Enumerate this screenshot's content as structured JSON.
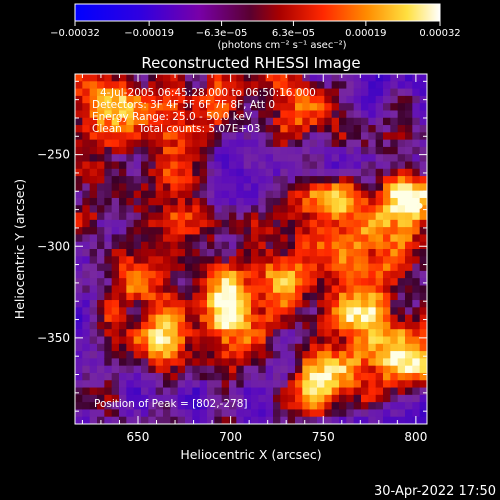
{
  "chart_data": {
    "type": "heatmap",
    "title": "Reconstructed RHESSI Image",
    "xlabel": "Heliocentric X (arcsec)",
    "ylabel": "Heliocentric Y (arcsec)",
    "xlim": [
      616,
      806
    ],
    "ylim": [
      -397,
      -206
    ],
    "x_ticks": [
      650,
      700,
      750,
      800
    ],
    "x_tick_labels": [
      "650",
      "700",
      "750",
      "800"
    ],
    "y_ticks": [
      -250,
      -300,
      -350
    ],
    "y_tick_labels": [
      "−250",
      "−300",
      "−350"
    ],
    "colorbar": {
      "min": -0.00032,
      "max": 0.00032,
      "ticks": [
        -0.00032,
        -0.00019,
        -6.3e-05,
        6.3e-05,
        0.00019,
        0.00032
      ],
      "tick_labels": [
        "−0.00032",
        "−0.00019",
        "−6.3e−05",
        "6.3e−05",
        "0.00019",
        "0.00032"
      ],
      "unit_label": "(photons cm⁻² s⁻¹ asec⁻²)",
      "colors": [
        "#0000ff",
        "#5a00c8",
        "#8a008a",
        "#c80000",
        "#ff3c00",
        "#ffa000",
        "#ffff80",
        "#ffffff"
      ]
    },
    "annotations": [
      "4-Jul-2005 06:45:28.000 to 06:50:16.000",
      "Detectors: 3F 4F 5F 6F 7F 8F, Att 0",
      "Energy Range: 25.0 - 50.0 keV",
      "Clean     Total counts: 5.07E+03",
      "Position of Peak = [802,-278]"
    ],
    "peak_position": [
      802,
      -278
    ],
    "grid": false,
    "background": "#000000"
  },
  "footer": {
    "timestamp": "30-Apr-2022 17:50"
  }
}
